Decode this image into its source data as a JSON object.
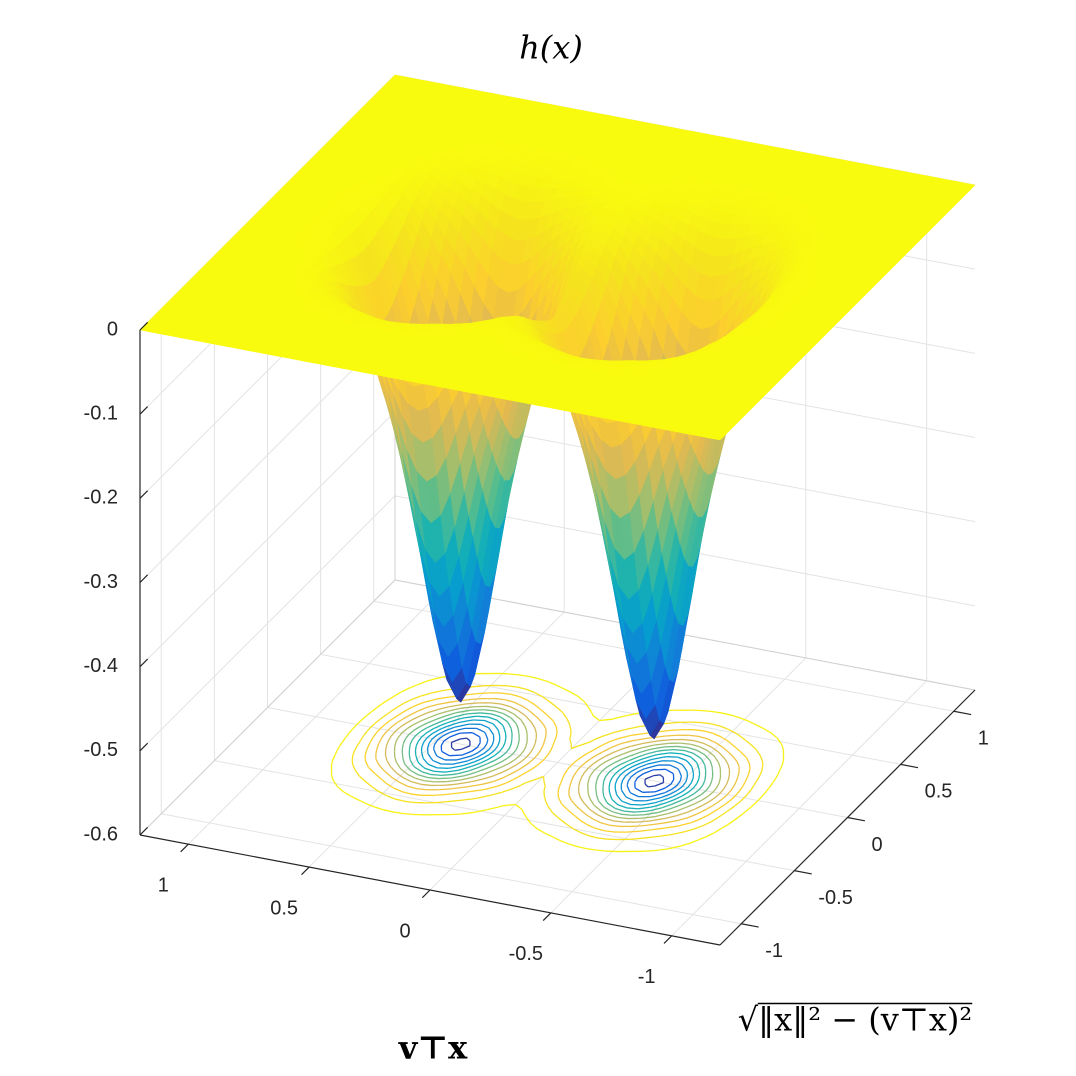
{
  "chart_data": {
    "type": "surface",
    "title": "h(x)",
    "xlabel": "v⊤x",
    "ylabel": "√‖x‖² − (v⊤x)²",
    "x": [
      -1.2,
      -1,
      -0.8,
      -0.6,
      -0.4,
      -0.2,
      0,
      0.2,
      0.4,
      0.6,
      0.8,
      1,
      1.2
    ],
    "y": [
      -1.2,
      -1,
      -0.8,
      -0.6,
      -0.4,
      -0.2,
      0,
      0.2,
      0.4,
      0.6,
      0.8,
      1,
      1.2
    ],
    "z": [
      [
        0,
        0,
        0,
        0,
        0,
        0,
        0,
        0,
        0,
        0,
        0,
        0,
        0
      ],
      [
        0,
        0,
        0,
        0,
        0,
        0,
        0,
        0,
        0,
        0,
        0,
        0,
        0
      ],
      [
        0,
        0,
        0,
        -0.002,
        -0.003,
        -0.002,
        0,
        -0.002,
        -0.003,
        -0.002,
        0,
        0,
        0
      ],
      [
        0,
        0,
        -0.002,
        -0.015,
        -0.031,
        -0.015,
        -0.004,
        -0.015,
        -0.031,
        -0.015,
        -0.002,
        0,
        0
      ],
      [
        0,
        0,
        -0.01,
        -0.076,
        -0.153,
        -0.076,
        -0.019,
        -0.076,
        -0.153,
        -0.076,
        -0.01,
        0,
        0
      ],
      [
        0,
        -0.001,
        -0.025,
        -0.2,
        -0.399,
        -0.2,
        -0.05,
        -0.2,
        -0.399,
        -0.2,
        -0.025,
        -0.001,
        0
      ],
      [
        0,
        -0.001,
        -0.035,
        -0.275,
        -0.55,
        -0.275,
        -0.069,
        -0.275,
        -0.55,
        -0.275,
        -0.035,
        -0.001,
        0
      ],
      [
        0,
        -0.001,
        -0.025,
        -0.2,
        -0.399,
        -0.2,
        -0.05,
        -0.2,
        -0.399,
        -0.2,
        -0.025,
        -0.001,
        0
      ],
      [
        0,
        0,
        -0.01,
        -0.076,
        -0.153,
        -0.076,
        -0.019,
        -0.076,
        -0.153,
        -0.076,
        -0.01,
        0,
        0
      ],
      [
        0,
        0,
        -0.002,
        -0.015,
        -0.031,
        -0.015,
        -0.004,
        -0.015,
        -0.031,
        -0.015,
        -0.002,
        0,
        0
      ],
      [
        0,
        0,
        0,
        -0.002,
        -0.003,
        -0.002,
        0,
        -0.002,
        -0.003,
        -0.002,
        0,
        0,
        0
      ],
      [
        0,
        0,
        0,
        0,
        0,
        0,
        0,
        0,
        0,
        0,
        0,
        0,
        0
      ],
      [
        0,
        0,
        0,
        0,
        0,
        0,
        0,
        0,
        0,
        0,
        0,
        0,
        0
      ]
    ],
    "xlim": [
      -1.2,
      1.2
    ],
    "ylim": [
      -1.2,
      1.2
    ],
    "zlim": [
      -0.6,
      0
    ],
    "xticks": [
      -1,
      -0.5,
      0,
      0.5,
      1
    ],
    "yticks": [
      -1,
      -0.5,
      0,
      0.5,
      1
    ],
    "zticks": [
      -0.6,
      -0.5,
      -0.4,
      -0.3,
      -0.2,
      -0.1,
      0
    ],
    "grid": true,
    "colormap": "parula",
    "contour": true
  }
}
